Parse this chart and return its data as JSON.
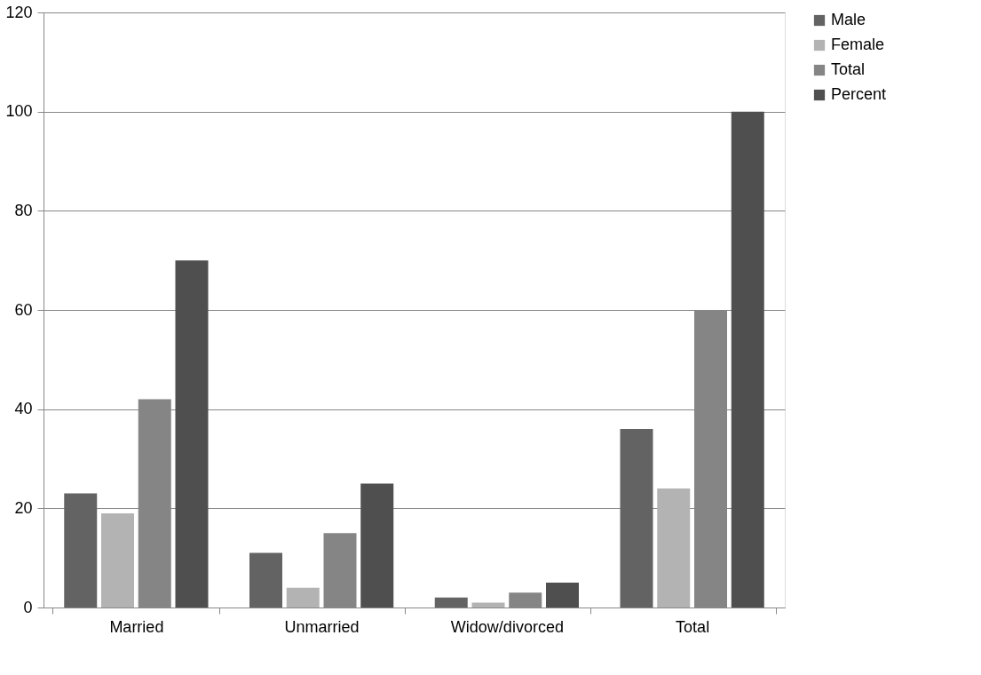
{
  "chart_data": {
    "type": "bar",
    "categories": [
      "Married",
      "Unmarried",
      "Widow/divorced",
      "Total"
    ],
    "series": [
      {
        "name": "Male",
        "color": "#636363",
        "values": [
          23,
          11,
          2,
          36
        ]
      },
      {
        "name": "Female",
        "color": "#b3b3b3",
        "values": [
          19,
          4,
          1,
          24
        ]
      },
      {
        "name": "Total",
        "color": "#858585",
        "values": [
          42,
          15,
          3,
          60
        ]
      },
      {
        "name": "Percent",
        "color": "#4f4f4f",
        "values": [
          70,
          25,
          5,
          100
        ]
      }
    ],
    "ylim": [
      0,
      120
    ],
    "yticks": [
      0,
      20,
      40,
      60,
      80,
      100,
      120
    ],
    "grid": "y",
    "legend": "right"
  }
}
